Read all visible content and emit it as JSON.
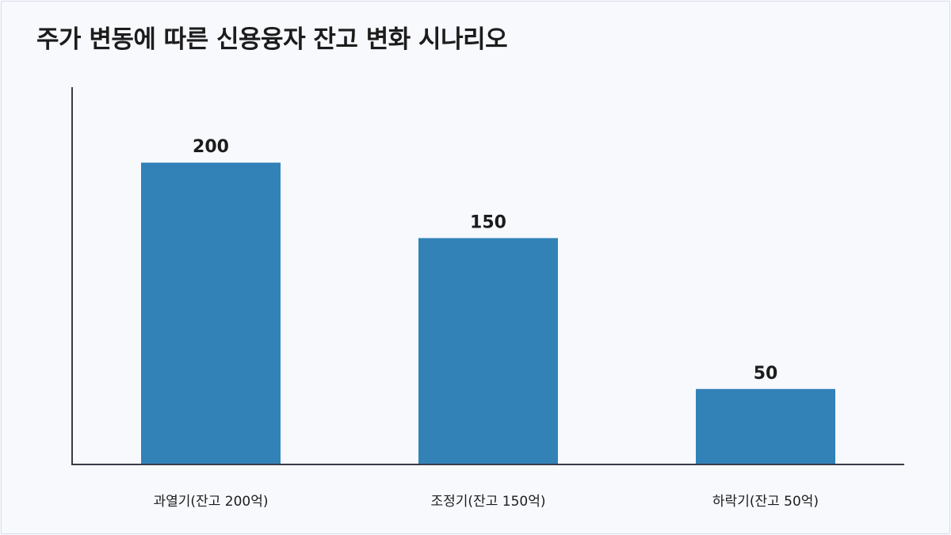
{
  "title": "주가 변동에 따른 신용융자 잔고 변화 시나리오",
  "chart_data": {
    "type": "bar",
    "categories": [
      "과열기(잔고 200억)",
      "조정기(잔고 150억)",
      "하락기(잔고 50억)"
    ],
    "values": [
      200,
      150,
      50
    ],
    "value_labels": [
      "200",
      "150",
      "50"
    ],
    "ylim": [
      0,
      250
    ],
    "grid": false,
    "legend": "none",
    "bar_color": "#3282b8"
  }
}
